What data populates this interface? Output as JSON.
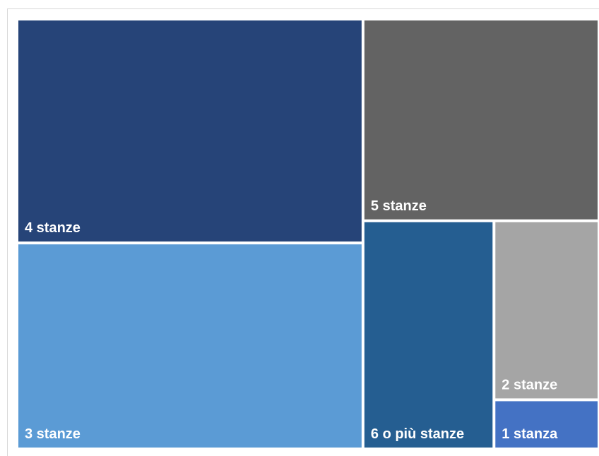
{
  "chart_data": {
    "type": "treemap",
    "title": "",
    "items": [
      {
        "label": "4 stanze",
        "value": 31.0,
        "color": "#264478"
      },
      {
        "label": "3 stanze",
        "value": 28.5,
        "color": "#5b9bd5"
      },
      {
        "label": "5 stanze",
        "value": 19.0,
        "color": "#636363"
      },
      {
        "label": "6 o più stanze",
        "value": 12.0,
        "color": "#255e91"
      },
      {
        "label": "2 stanze",
        "value": 7.5,
        "color": "#a5a5a5"
      },
      {
        "label": "1 stanza",
        "value": 2.0,
        "color": "#4472c4"
      }
    ]
  }
}
